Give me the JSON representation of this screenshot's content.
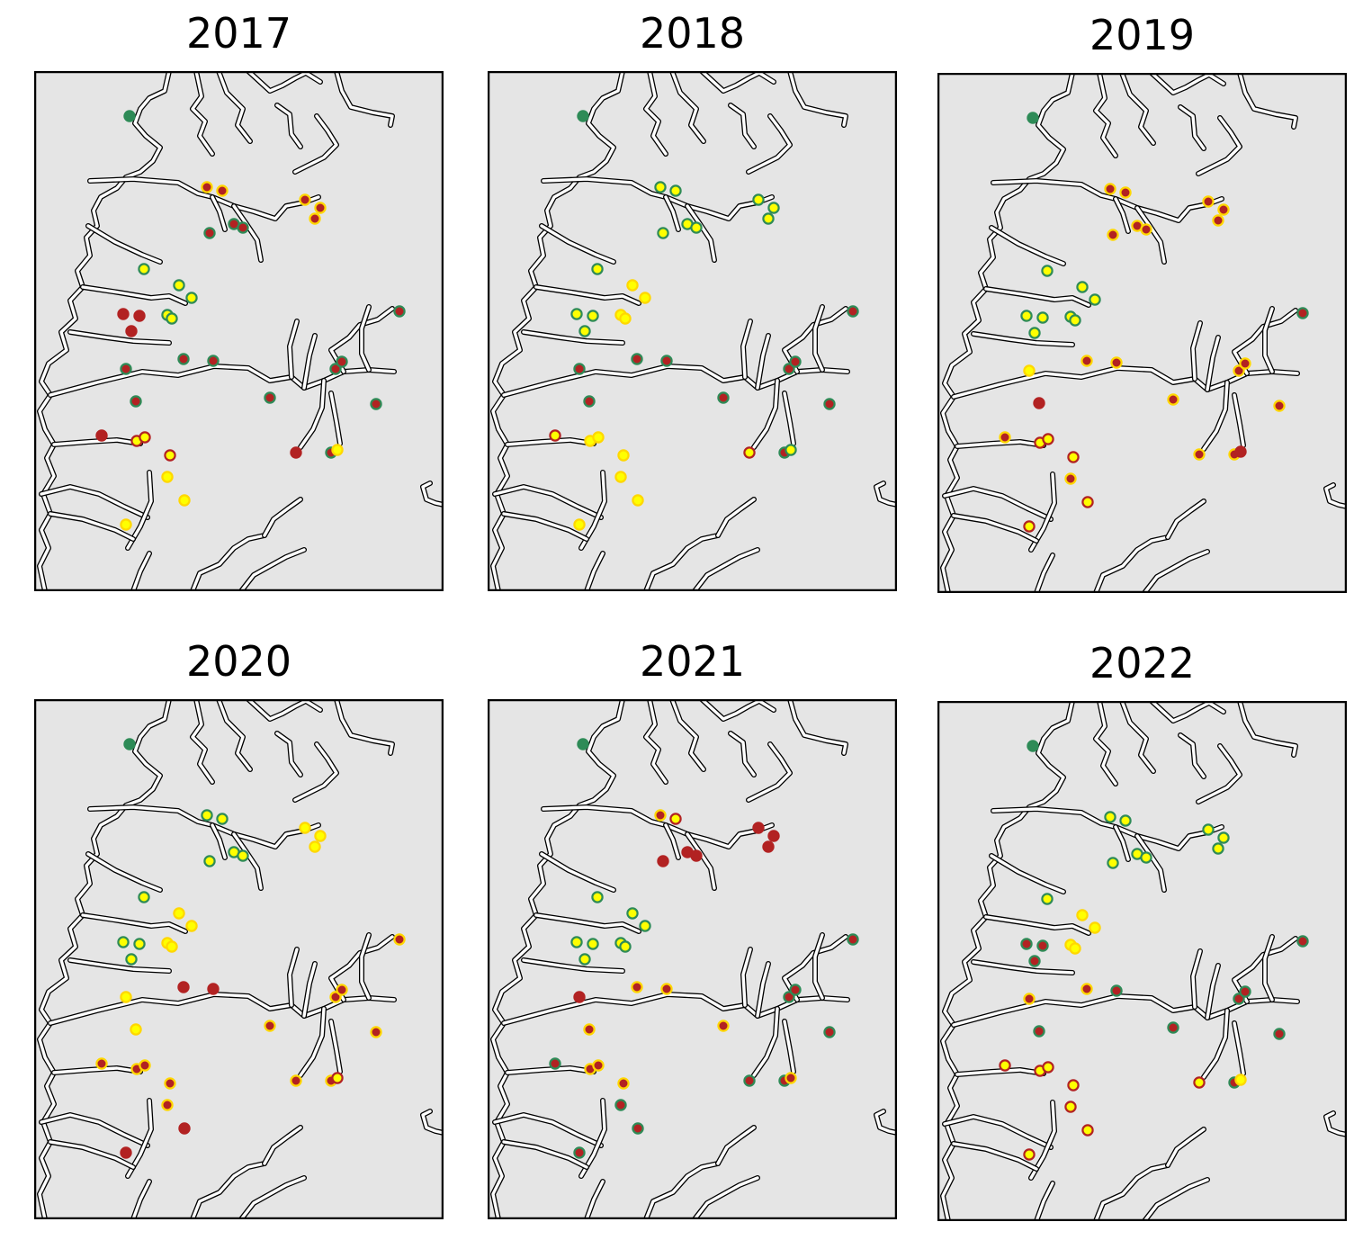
{
  "panels": [
    {
      "title": "2017",
      "sites": [
        {
          "fill": "#2e8b57",
          "edge": "#2e8b57"
        },
        {
          "fill": "#b22222",
          "edge": "#ffd700"
        },
        {
          "fill": "#b22222",
          "edge": "#ffd700"
        },
        {
          "fill": "#b22222",
          "edge": "#2e8b57"
        },
        {
          "fill": "#b22222",
          "edge": "#2e8b57"
        },
        {
          "fill": "#b22222",
          "edge": "#2e8b57"
        },
        {
          "fill": "#b22222",
          "edge": "#ffd700"
        },
        {
          "fill": "#b22222",
          "edge": "#ffd700"
        },
        {
          "fill": "#b22222",
          "edge": "#ffd700"
        },
        {
          "fill": "#ffff00",
          "edge": "#2e8b57"
        },
        {
          "fill": "#ffff00",
          "edge": "#2e8b57"
        },
        {
          "fill": "#ffff00",
          "edge": "#2e8b57"
        },
        {
          "fill": "#b22222",
          "edge": "#b22222"
        },
        {
          "fill": "#b22222",
          "edge": "#b22222"
        },
        {
          "fill": "#b22222",
          "edge": "#b22222"
        },
        {
          "fill": "#ffff00",
          "edge": "#2e8b57"
        },
        {
          "fill": "#ffff00",
          "edge": "#2e8b57"
        },
        {
          "fill": "#b22222",
          "edge": "#2e8b57"
        },
        {
          "fill": "#b22222",
          "edge": "#2e8b57"
        },
        {
          "fill": "#b22222",
          "edge": "#2e8b57"
        },
        {
          "fill": "#b22222",
          "edge": "#2e8b57"
        },
        {
          "fill": "#b22222",
          "edge": "#2e8b57"
        },
        {
          "fill": "#b22222",
          "edge": "#2e8b57"
        },
        {
          "fill": "#b22222",
          "edge": "#2e8b57"
        },
        {
          "fill": "#b22222",
          "edge": "#2e8b57"
        },
        {
          "fill": "#b22222",
          "edge": "#2e8b57"
        },
        {
          "fill": "#b22222",
          "edge": "#2e8b57"
        },
        {
          "fill": "#ffff00",
          "edge": "#ffd700"
        },
        {
          "fill": "#b22222",
          "edge": "#b22222"
        },
        {
          "fill": "#b22222",
          "edge": "#b22222"
        },
        {
          "fill": "#ffff00",
          "edge": "#b22222"
        },
        {
          "fill": "#ffff00",
          "edge": "#b22222"
        },
        {
          "fill": "#ffff00",
          "edge": "#b22222"
        },
        {
          "fill": "#ffff00",
          "edge": "#ffd700"
        },
        {
          "fill": "#ffff00",
          "edge": "#ffd700"
        },
        {
          "fill": "#ffff00",
          "edge": "#ffd700"
        }
      ]
    },
    {
      "title": "2018",
      "sites": [
        {
          "fill": "#2e8b57",
          "edge": "#2e8b57"
        },
        {
          "fill": "#ffff00",
          "edge": "#2e8b57"
        },
        {
          "fill": "#ffff00",
          "edge": "#2e8b57"
        },
        {
          "fill": "#ffff00",
          "edge": "#2e8b57"
        },
        {
          "fill": "#ffff00",
          "edge": "#2e8b57"
        },
        {
          "fill": "#ffff00",
          "edge": "#2e8b57"
        },
        {
          "fill": "#ffff00",
          "edge": "#2e8b57"
        },
        {
          "fill": "#ffff00",
          "edge": "#2e8b57"
        },
        {
          "fill": "#ffff00",
          "edge": "#2e8b57"
        },
        {
          "fill": "#ffff00",
          "edge": "#2e8b57"
        },
        {
          "fill": "#ffff00",
          "edge": "#ffd700"
        },
        {
          "fill": "#ffff00",
          "edge": "#ffd700"
        },
        {
          "fill": "#ffff00",
          "edge": "#2e8b57"
        },
        {
          "fill": "#ffff00",
          "edge": "#2e8b57"
        },
        {
          "fill": "#ffff00",
          "edge": "#2e8b57"
        },
        {
          "fill": "#ffff00",
          "edge": "#ffd700"
        },
        {
          "fill": "#ffff00",
          "edge": "#ffd700"
        },
        {
          "fill": "#b22222",
          "edge": "#2e8b57"
        },
        {
          "fill": "#b22222",
          "edge": "#2e8b57"
        },
        {
          "fill": "#b22222",
          "edge": "#2e8b57"
        },
        {
          "fill": "#b22222",
          "edge": "#2e8b57"
        },
        {
          "fill": "#b22222",
          "edge": "#2e8b57"
        },
        {
          "fill": "#b22222",
          "edge": "#2e8b57"
        },
        {
          "fill": "#b22222",
          "edge": "#2e8b57"
        },
        {
          "fill": "#b22222",
          "edge": "#2e8b57"
        },
        {
          "fill": "#b22222",
          "edge": "#2e8b57"
        },
        {
          "fill": "#b22222",
          "edge": "#2e8b57"
        },
        {
          "fill": "#ffff00",
          "edge": "#2e8b57"
        },
        {
          "fill": "#ffff00",
          "edge": "#b22222"
        },
        {
          "fill": "#ffff00",
          "edge": "#b22222"
        },
        {
          "fill": "#ffff00",
          "edge": "#ffd700"
        },
        {
          "fill": "#ffff00",
          "edge": "#ffd700"
        },
        {
          "fill": "#ffff00",
          "edge": "#ffd700"
        },
        {
          "fill": "#ffff00",
          "edge": "#ffd700"
        },
        {
          "fill": "#ffff00",
          "edge": "#ffd700"
        },
        {
          "fill": "#ffff00",
          "edge": "#ffd700"
        }
      ]
    },
    {
      "title": "2019",
      "sites": [
        {
          "fill": "#2e8b57",
          "edge": "#2e8b57"
        },
        {
          "fill": "#b22222",
          "edge": "#ffd700"
        },
        {
          "fill": "#b22222",
          "edge": "#ffd700"
        },
        {
          "fill": "#b22222",
          "edge": "#ffd700"
        },
        {
          "fill": "#b22222",
          "edge": "#ffd700"
        },
        {
          "fill": "#b22222",
          "edge": "#ffd700"
        },
        {
          "fill": "#b22222",
          "edge": "#ffd700"
        },
        {
          "fill": "#b22222",
          "edge": "#ffd700"
        },
        {
          "fill": "#b22222",
          "edge": "#ffd700"
        },
        {
          "fill": "#ffff00",
          "edge": "#2e8b57"
        },
        {
          "fill": "#ffff00",
          "edge": "#2e8b57"
        },
        {
          "fill": "#ffff00",
          "edge": "#2e8b57"
        },
        {
          "fill": "#ffff00",
          "edge": "#2e8b57"
        },
        {
          "fill": "#ffff00",
          "edge": "#2e8b57"
        },
        {
          "fill": "#ffff00",
          "edge": "#2e8b57"
        },
        {
          "fill": "#ffff00",
          "edge": "#2e8b57"
        },
        {
          "fill": "#ffff00",
          "edge": "#2e8b57"
        },
        {
          "fill": "#ffff00",
          "edge": "#ffd700"
        },
        {
          "fill": "#b22222",
          "edge": "#ffd700"
        },
        {
          "fill": "#b22222",
          "edge": "#ffd700"
        },
        {
          "fill": "#b22222",
          "edge": "#b22222"
        },
        {
          "fill": "#b22222",
          "edge": "#ffd700"
        },
        {
          "fill": "#b22222",
          "edge": "#ffd700"
        },
        {
          "fill": "#b22222",
          "edge": "#ffd700"
        },
        {
          "fill": "#b22222",
          "edge": "#2e8b57"
        },
        {
          "fill": "#b22222",
          "edge": "#ffd700"
        },
        {
          "fill": "#b22222",
          "edge": "#ffd700"
        },
        {
          "fill": "#b22222",
          "edge": "#b22222"
        },
        {
          "fill": "#b22222",
          "edge": "#ffd700"
        },
        {
          "fill": "#b22222",
          "edge": "#ffd700"
        },
        {
          "fill": "#ffff00",
          "edge": "#b22222"
        },
        {
          "fill": "#ffff00",
          "edge": "#b22222"
        },
        {
          "fill": "#ffff00",
          "edge": "#b22222"
        },
        {
          "fill": "#b22222",
          "edge": "#ffd700"
        },
        {
          "fill": "#ffff00",
          "edge": "#b22222"
        },
        {
          "fill": "#ffff00",
          "edge": "#b22222"
        }
      ]
    },
    {
      "title": "2020",
      "sites": [
        {
          "fill": "#2e8b57",
          "edge": "#2e8b57"
        },
        {
          "fill": "#ffff00",
          "edge": "#2e8b57"
        },
        {
          "fill": "#ffff00",
          "edge": "#2e8b57"
        },
        {
          "fill": "#ffff00",
          "edge": "#2e8b57"
        },
        {
          "fill": "#ffff00",
          "edge": "#2e8b57"
        },
        {
          "fill": "#ffff00",
          "edge": "#2e8b57"
        },
        {
          "fill": "#ffff00",
          "edge": "#ffd700"
        },
        {
          "fill": "#ffff00",
          "edge": "#ffd700"
        },
        {
          "fill": "#ffff00",
          "edge": "#ffd700"
        },
        {
          "fill": "#ffff00",
          "edge": "#2e8b57"
        },
        {
          "fill": "#ffff00",
          "edge": "#ffd700"
        },
        {
          "fill": "#ffff00",
          "edge": "#ffd700"
        },
        {
          "fill": "#ffff00",
          "edge": "#2e8b57"
        },
        {
          "fill": "#ffff00",
          "edge": "#2e8b57"
        },
        {
          "fill": "#ffff00",
          "edge": "#2e8b57"
        },
        {
          "fill": "#ffff00",
          "edge": "#ffd700"
        },
        {
          "fill": "#ffff00",
          "edge": "#ffd700"
        },
        {
          "fill": "#ffff00",
          "edge": "#ffd700"
        },
        {
          "fill": "#b22222",
          "edge": "#b22222"
        },
        {
          "fill": "#b22222",
          "edge": "#b22222"
        },
        {
          "fill": "#ffff00",
          "edge": "#ffd700"
        },
        {
          "fill": "#b22222",
          "edge": "#ffd700"
        },
        {
          "fill": "#b22222",
          "edge": "#ffd700"
        },
        {
          "fill": "#b22222",
          "edge": "#ffd700"
        },
        {
          "fill": "#b22222",
          "edge": "#ffd700"
        },
        {
          "fill": "#b22222",
          "edge": "#ffd700"
        },
        {
          "fill": "#b22222",
          "edge": "#ffd700"
        },
        {
          "fill": "#ffff00",
          "edge": "#b22222"
        },
        {
          "fill": "#b22222",
          "edge": "#ffd700"
        },
        {
          "fill": "#b22222",
          "edge": "#ffd700"
        },
        {
          "fill": "#b22222",
          "edge": "#ffd700"
        },
        {
          "fill": "#b22222",
          "edge": "#ffd700"
        },
        {
          "fill": "#b22222",
          "edge": "#ffd700"
        },
        {
          "fill": "#b22222",
          "edge": "#ffd700"
        },
        {
          "fill": "#b22222",
          "edge": "#b22222"
        },
        {
          "fill": "#b22222",
          "edge": "#b22222"
        }
      ]
    },
    {
      "title": "2021",
      "sites": [
        {
          "fill": "#2e8b57",
          "edge": "#2e8b57"
        },
        {
          "fill": "#b22222",
          "edge": "#ffd700"
        },
        {
          "fill": "#ffff00",
          "edge": "#b22222"
        },
        {
          "fill": "#b22222",
          "edge": "#b22222"
        },
        {
          "fill": "#b22222",
          "edge": "#b22222"
        },
        {
          "fill": "#b22222",
          "edge": "#b22222"
        },
        {
          "fill": "#b22222",
          "edge": "#b22222"
        },
        {
          "fill": "#b22222",
          "edge": "#b22222"
        },
        {
          "fill": "#b22222",
          "edge": "#b22222"
        },
        {
          "fill": "#ffff00",
          "edge": "#2e8b57"
        },
        {
          "fill": "#ffff00",
          "edge": "#2e8b57"
        },
        {
          "fill": "#ffff00",
          "edge": "#2e8b57"
        },
        {
          "fill": "#ffff00",
          "edge": "#2e8b57"
        },
        {
          "fill": "#ffff00",
          "edge": "#2e8b57"
        },
        {
          "fill": "#ffff00",
          "edge": "#2e8b57"
        },
        {
          "fill": "#ffff00",
          "edge": "#2e8b57"
        },
        {
          "fill": "#ffff00",
          "edge": "#2e8b57"
        },
        {
          "fill": "#b22222",
          "edge": "#b22222"
        },
        {
          "fill": "#b22222",
          "edge": "#ffd700"
        },
        {
          "fill": "#b22222",
          "edge": "#ffd700"
        },
        {
          "fill": "#b22222",
          "edge": "#ffd700"
        },
        {
          "fill": "#b22222",
          "edge": "#ffd700"
        },
        {
          "fill": "#b22222",
          "edge": "#2e8b57"
        },
        {
          "fill": "#b22222",
          "edge": "#2e8b57"
        },
        {
          "fill": "#b22222",
          "edge": "#2e8b57"
        },
        {
          "fill": "#b22222",
          "edge": "#2e8b57"
        },
        {
          "fill": "#b22222",
          "edge": "#2e8b57"
        },
        {
          "fill": "#b22222",
          "edge": "#ffd700"
        },
        {
          "fill": "#b22222",
          "edge": "#2e8b57"
        },
        {
          "fill": "#b22222",
          "edge": "#2e8b57"
        },
        {
          "fill": "#b22222",
          "edge": "#ffd700"
        },
        {
          "fill": "#b22222",
          "edge": "#ffd700"
        },
        {
          "fill": "#b22222",
          "edge": "#ffd700"
        },
        {
          "fill": "#b22222",
          "edge": "#2e8b57"
        },
        {
          "fill": "#b22222",
          "edge": "#2e8b57"
        },
        {
          "fill": "#b22222",
          "edge": "#2e8b57"
        }
      ]
    },
    {
      "title": "2022",
      "sites": [
        {
          "fill": "#2e8b57",
          "edge": "#2e8b57"
        },
        {
          "fill": "#ffff00",
          "edge": "#2e8b57"
        },
        {
          "fill": "#ffff00",
          "edge": "#2e8b57"
        },
        {
          "fill": "#ffff00",
          "edge": "#2e8b57"
        },
        {
          "fill": "#ffff00",
          "edge": "#2e8b57"
        },
        {
          "fill": "#ffff00",
          "edge": "#2e8b57"
        },
        {
          "fill": "#ffff00",
          "edge": "#2e8b57"
        },
        {
          "fill": "#ffff00",
          "edge": "#2e8b57"
        },
        {
          "fill": "#ffff00",
          "edge": "#2e8b57"
        },
        {
          "fill": "#ffff00",
          "edge": "#2e8b57"
        },
        {
          "fill": "#ffff00",
          "edge": "#ffd700"
        },
        {
          "fill": "#ffff00",
          "edge": "#ffd700"
        },
        {
          "fill": "#b22222",
          "edge": "#2e8b57"
        },
        {
          "fill": "#b22222",
          "edge": "#2e8b57"
        },
        {
          "fill": "#b22222",
          "edge": "#2e8b57"
        },
        {
          "fill": "#ffff00",
          "edge": "#ffd700"
        },
        {
          "fill": "#ffff00",
          "edge": "#ffd700"
        },
        {
          "fill": "#b22222",
          "edge": "#ffd700"
        },
        {
          "fill": "#b22222",
          "edge": "#ffd700"
        },
        {
          "fill": "#b22222",
          "edge": "#2e8b57"
        },
        {
          "fill": "#b22222",
          "edge": "#2e8b57"
        },
        {
          "fill": "#b22222",
          "edge": "#2e8b57"
        },
        {
          "fill": "#b22222",
          "edge": "#2e8b57"
        },
        {
          "fill": "#b22222",
          "edge": "#2e8b57"
        },
        {
          "fill": "#b22222",
          "edge": "#2e8b57"
        },
        {
          "fill": "#b22222",
          "edge": "#2e8b57"
        },
        {
          "fill": "#b22222",
          "edge": "#2e8b57"
        },
        {
          "fill": "#ffff00",
          "edge": "#ffd700"
        },
        {
          "fill": "#ffff00",
          "edge": "#b22222"
        },
        {
          "fill": "#ffff00",
          "edge": "#b22222"
        },
        {
          "fill": "#ffff00",
          "edge": "#b22222"
        },
        {
          "fill": "#ffff00",
          "edge": "#b22222"
        },
        {
          "fill": "#ffff00",
          "edge": "#b22222"
        },
        {
          "fill": "#ffff00",
          "edge": "#b22222"
        },
        {
          "fill": "#ffff00",
          "edge": "#b22222"
        },
        {
          "fill": "#ffff00",
          "edge": "#b22222"
        }
      ]
    }
  ]
}
